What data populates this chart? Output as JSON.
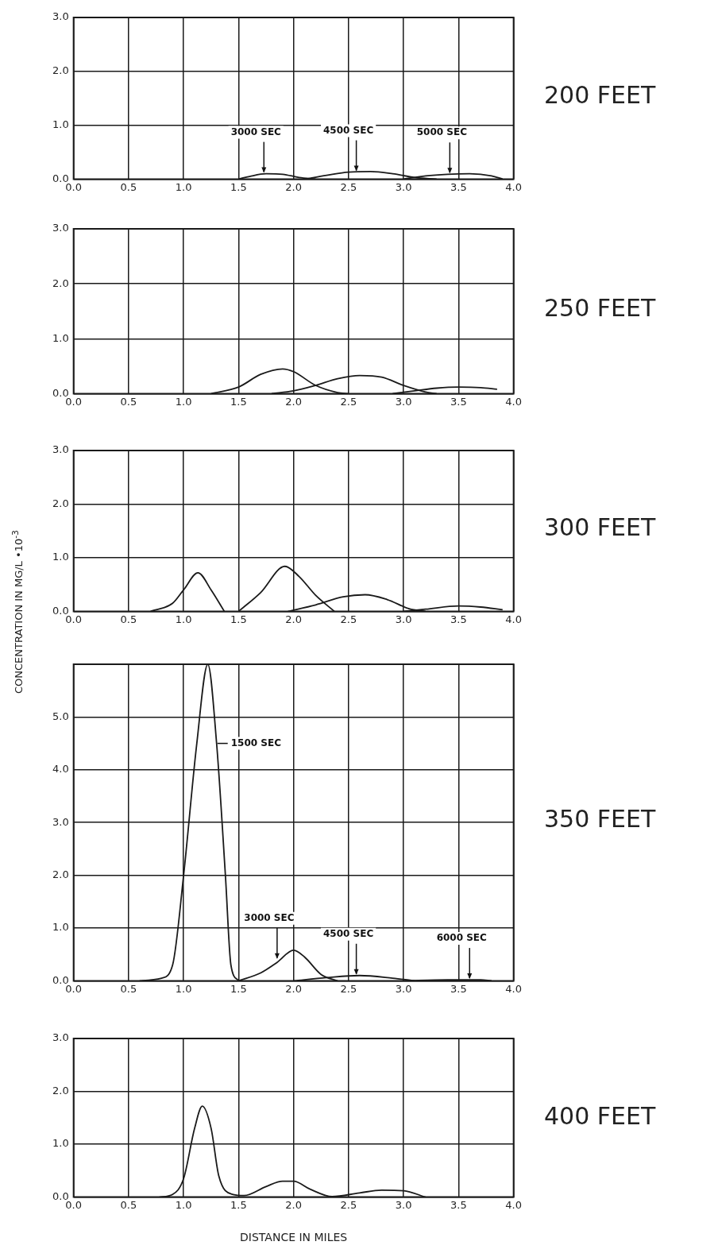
{
  "chart_data": [
    {
      "type": "line",
      "grid": true,
      "marker": "none",
      "line_style": "solid",
      "xlim": [
        0,
        4
      ],
      "xticks": [
        {
          "value": 0,
          "label": "0.0"
        },
        {
          "value": 0.5,
          "label": "0.5"
        },
        {
          "value": 1,
          "label": "1.0"
        },
        {
          "value": 1.5,
          "label": "1.5"
        },
        {
          "value": 2,
          "label": "2.0"
        },
        {
          "value": 2.5,
          "label": "2.5"
        },
        {
          "value": 3,
          "label": "3.0"
        },
        {
          "value": 3.5,
          "label": "3.5"
        },
        {
          "value": 4,
          "label": "4.0"
        }
      ],
      "ylim": [
        0,
        3
      ],
      "yticks": [
        {
          "value": 0,
          "label": "0.0"
        },
        {
          "value": 1,
          "label": "1.0"
        },
        {
          "value": 2,
          "label": "2.0"
        },
        {
          "value": 3,
          "label": "3.0"
        }
      ],
      "series": [
        {
          "color": "#1a1a1a",
          "x": [
            1.5,
            1.6,
            1.75,
            1.9,
            2.05,
            2.2
          ],
          "values": [
            0,
            0.05,
            0.1,
            0.09,
            0.03,
            0
          ]
        },
        {
          "color": "#1a1a1a",
          "x": [
            2.1,
            2.3,
            2.5,
            2.7,
            2.9,
            3.1,
            3.3
          ],
          "values": [
            0,
            0.07,
            0.13,
            0.14,
            0.1,
            0.03,
            0
          ]
        },
        {
          "color": "#1a1a1a",
          "x": [
            3.0,
            3.2,
            3.4,
            3.6,
            3.8,
            3.9
          ],
          "values": [
            0,
            0.06,
            0.09,
            0.1,
            0.06,
            0
          ]
        }
      ],
      "annotations": [
        "200 FEET",
        {
          "text": "3000 SEC",
          "x": 1.73,
          "y": 0.1
        },
        {
          "text": "4500 SEC",
          "x": 2.57,
          "y": 0.13
        },
        {
          "text": "5000 SEC",
          "x": 3.42,
          "y": 0.09
        }
      ]
    },
    {
      "type": "line",
      "annotations": [
        "250 FEET"
      ],
      "grid": true,
      "marker": "none",
      "line_style": "solid",
      "xlim": [
        0,
        4
      ],
      "xticks": [
        {
          "value": 0,
          "label": "0.0"
        },
        {
          "value": 0.5,
          "label": "0.5"
        },
        {
          "value": 1,
          "label": "1.0"
        },
        {
          "value": 1.5,
          "label": "1.5"
        },
        {
          "value": 2,
          "label": "2.0"
        },
        {
          "value": 2.5,
          "label": "2.5"
        },
        {
          "value": 3,
          "label": "3.0"
        },
        {
          "value": 3.5,
          "label": "3.5"
        },
        {
          "value": 4,
          "label": "4.0"
        }
      ],
      "ylim": [
        0,
        3
      ],
      "yticks": [
        {
          "value": 0,
          "label": "0.0"
        },
        {
          "value": 1,
          "label": "1.0"
        },
        {
          "value": 2,
          "label": "2.0"
        },
        {
          "value": 3,
          "label": "3.0"
        }
      ],
      "series": [
        {
          "color": "#1a1a1a",
          "x": [
            1.25,
            1.5,
            1.7,
            1.9,
            2.0,
            2.2,
            2.4,
            2.5
          ],
          "values": [
            0,
            0.12,
            0.35,
            0.45,
            0.4,
            0.15,
            0.02,
            0
          ]
        },
        {
          "color": "#1a1a1a",
          "x": [
            1.8,
            2.0,
            2.2,
            2.4,
            2.6,
            2.8,
            3.0,
            3.2,
            3.3
          ],
          "values": [
            0,
            0.05,
            0.15,
            0.27,
            0.33,
            0.3,
            0.15,
            0.03,
            0
          ]
        },
        {
          "color": "#1a1a1a",
          "x": [
            2.9,
            3.1,
            3.3,
            3.5,
            3.7,
            3.85
          ],
          "values": [
            0,
            0.05,
            0.1,
            0.12,
            0.11,
            0.08
          ]
        }
      ]
    },
    {
      "type": "line",
      "annotations": [
        "300 FEET"
      ],
      "ylabel": "CONCENTRATION IN MG/L •10$^{-3}$",
      "grid": true,
      "marker": "none",
      "line_style": "solid",
      "xlim": [
        0,
        4
      ],
      "xticks": [
        {
          "value": 0,
          "label": "0.0"
        },
        {
          "value": 0.5,
          "label": "0.5"
        },
        {
          "value": 1,
          "label": "1.0"
        },
        {
          "value": 1.5,
          "label": "1.5"
        },
        {
          "value": 2,
          "label": "2.0"
        },
        {
          "value": 2.5,
          "label": "2.5"
        },
        {
          "value": 3,
          "label": "3.0"
        },
        {
          "value": 3.5,
          "label": "3.5"
        },
        {
          "value": 4,
          "label": "4.0"
        }
      ],
      "ylim": [
        0,
        3
      ],
      "yticks": [
        {
          "value": 0,
          "label": "0.0"
        },
        {
          "value": 1,
          "label": "1.0"
        },
        {
          "value": 2,
          "label": "2.0"
        },
        {
          "value": 3,
          "label": "3.0"
        }
      ],
      "series": [
        {
          "color": "#1a1a1a",
          "x": [
            0.7,
            0.9,
            1.0,
            1.13,
            1.25,
            1.37
          ],
          "values": [
            0,
            0.15,
            0.4,
            0.72,
            0.4,
            0
          ]
        },
        {
          "color": "#1a1a1a",
          "x": [
            1.5,
            1.7,
            1.92,
            2.05,
            2.2,
            2.37
          ],
          "values": [
            0,
            0.35,
            0.84,
            0.65,
            0.3,
            0
          ]
        },
        {
          "color": "#1a1a1a",
          "x": [
            1.95,
            2.2,
            2.45,
            2.65,
            2.85,
            3.05,
            3.2
          ],
          "values": [
            0,
            0.12,
            0.27,
            0.31,
            0.22,
            0.05,
            0
          ]
        },
        {
          "color": "#1a1a1a",
          "x": [
            3.0,
            3.2,
            3.5,
            3.7,
            3.9
          ],
          "values": [
            0,
            0.04,
            0.1,
            0.08,
            0.03
          ]
        }
      ]
    },
    {
      "type": "line",
      "grid": true,
      "marker": "none",
      "line_style": "solid",
      "xlim": [
        0,
        4
      ],
      "xticks": [
        {
          "value": 0,
          "label": "0.0"
        },
        {
          "value": 0.5,
          "label": "0.5"
        },
        {
          "value": 1,
          "label": "1.0"
        },
        {
          "value": 1.5,
          "label": "1.5"
        },
        {
          "value": 2,
          "label": "2.0"
        },
        {
          "value": 2.5,
          "label": "2.5"
        },
        {
          "value": 3,
          "label": "3.0"
        },
        {
          "value": 3.5,
          "label": "3.5"
        },
        {
          "value": 4,
          "label": "4.0"
        }
      ],
      "ylim": [
        0,
        6
      ],
      "yticks": [
        {
          "value": 0,
          "label": "0.0"
        },
        {
          "value": 1,
          "label": "1.0"
        },
        {
          "value": 2,
          "label": "2.0"
        },
        {
          "value": 3,
          "label": "3.0"
        },
        {
          "value": 4,
          "label": "4.0"
        },
        {
          "value": 5,
          "label": "5.0"
        },
        {
          "value": 6,
          "label": null
        }
      ],
      "series": [
        {
          "color": "#1a1a1a",
          "x": [
            0.6,
            0.8,
            0.9,
            1.0,
            1.12,
            1.22,
            1.3,
            1.38,
            1.43,
            1.5
          ],
          "values": [
            0,
            0.05,
            0.3,
            2.0,
            4.5,
            6.0,
            4.5,
            2.0,
            0.3,
            0
          ]
        },
        {
          "color": "#1a1a1a",
          "x": [
            1.5,
            1.7,
            1.85,
            2.0,
            2.1,
            2.25,
            2.4
          ],
          "values": [
            0,
            0.15,
            0.35,
            0.58,
            0.45,
            0.12,
            0
          ]
        },
        {
          "color": "#1a1a1a",
          "x": [
            2.0,
            2.3,
            2.6,
            2.9,
            3.1
          ],
          "values": [
            0,
            0.06,
            0.1,
            0.05,
            0
          ]
        },
        {
          "color": "#1a1a1a",
          "x": [
            3.0,
            3.4,
            3.7,
            3.8
          ],
          "values": [
            0,
            0.02,
            0.02,
            0
          ]
        }
      ],
      "annotations": [
        "350 FEET",
        {
          "text": "1500 SEC",
          "x": 1.3,
          "y": 4.5
        },
        {
          "text": "3000 SEC",
          "x": 1.85,
          "y": 0.4
        },
        {
          "text": "4500 SEC",
          "x": 2.57,
          "y": 0.1
        },
        {
          "text": "6000 SEC",
          "x": 3.6,
          "y": 0.02
        }
      ]
    },
    {
      "type": "line",
      "annotations": [
        "400 FEET"
      ],
      "xlabel": "DISTANCE IN MILES",
      "grid": true,
      "marker": "none",
      "line_style": "solid",
      "xlim": [
        0,
        4
      ],
      "xticks": [
        {
          "value": 0,
          "label": "0.0"
        },
        {
          "value": 0.5,
          "label": "0.5"
        },
        {
          "value": 1,
          "label": "1.0"
        },
        {
          "value": 1.5,
          "label": "1.5"
        },
        {
          "value": 2,
          "label": "2.0"
        },
        {
          "value": 2.5,
          "label": "2.5"
        },
        {
          "value": 3,
          "label": "3.0"
        },
        {
          "value": 3.5,
          "label": "3.5"
        },
        {
          "value": 4,
          "label": "4.0"
        }
      ],
      "ylim": [
        0,
        3
      ],
      "yticks": [
        {
          "value": 0,
          "label": "0.0"
        },
        {
          "value": 1,
          "label": "1.0"
        },
        {
          "value": 2,
          "label": "2.0"
        },
        {
          "value": 3,
          "label": "3.0"
        }
      ],
      "series": [
        {
          "color": "#1a1a1a",
          "x": [
            0.78,
            0.9,
            1.0,
            1.1,
            1.17,
            1.25,
            1.32,
            1.45,
            1.55,
            1.75,
            1.9,
            2.0,
            2.15,
            2.35,
            2.6,
            2.8,
            3.0,
            3.2
          ],
          "values": [
            0,
            0.05,
            0.35,
            1.3,
            1.72,
            1.3,
            0.4,
            0.05,
            0.03,
            0.2,
            0.3,
            0.3,
            0.15,
            0.01,
            0.08,
            0.13,
            0.12,
            0
          ]
        }
      ]
    }
  ]
}
